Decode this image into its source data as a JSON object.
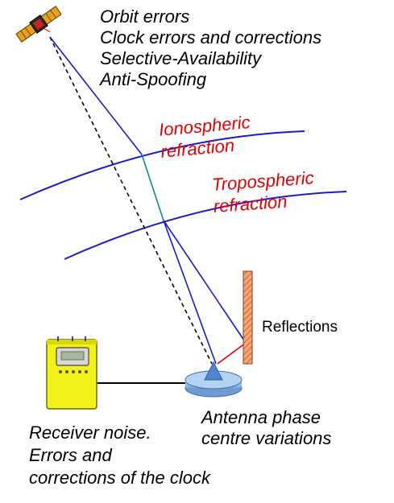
{
  "satellite_errors": {
    "line1": "Orbit errors",
    "line2": "Clock errors and corrections",
    "line3": "Selective-Availability",
    "line4": "Anti-Spoofing"
  },
  "ionosphere": {
    "line1": "Ionospheric",
    "line2": "refraction"
  },
  "troposphere": {
    "line1": "Tropospheric",
    "line2": "refraction"
  },
  "reflections": {
    "label": "Reflections"
  },
  "antenna": {
    "line1": "Antenna phase",
    "line2": "centre variations"
  },
  "receiver": {
    "line1": "Receiver noise.",
    "line2": "Errors and",
    "line3": "corrections of the clock"
  },
  "colors": {
    "signal_path": "#1a1ad0",
    "layer_line": "#1a1ad0",
    "refracted_segment": "#1a8a7a",
    "reflected_ray": "#e00000",
    "label_red": "#e00000",
    "wall_fill": "#f0a070",
    "antenna_fill": "#9ec6f0",
    "receiver_fill": "#f2f21a"
  },
  "icons": {
    "satellite": "satellite-icon",
    "receiver": "receiver-icon",
    "antenna": "antenna-icon",
    "reflector": "reflector-wall-icon"
  }
}
